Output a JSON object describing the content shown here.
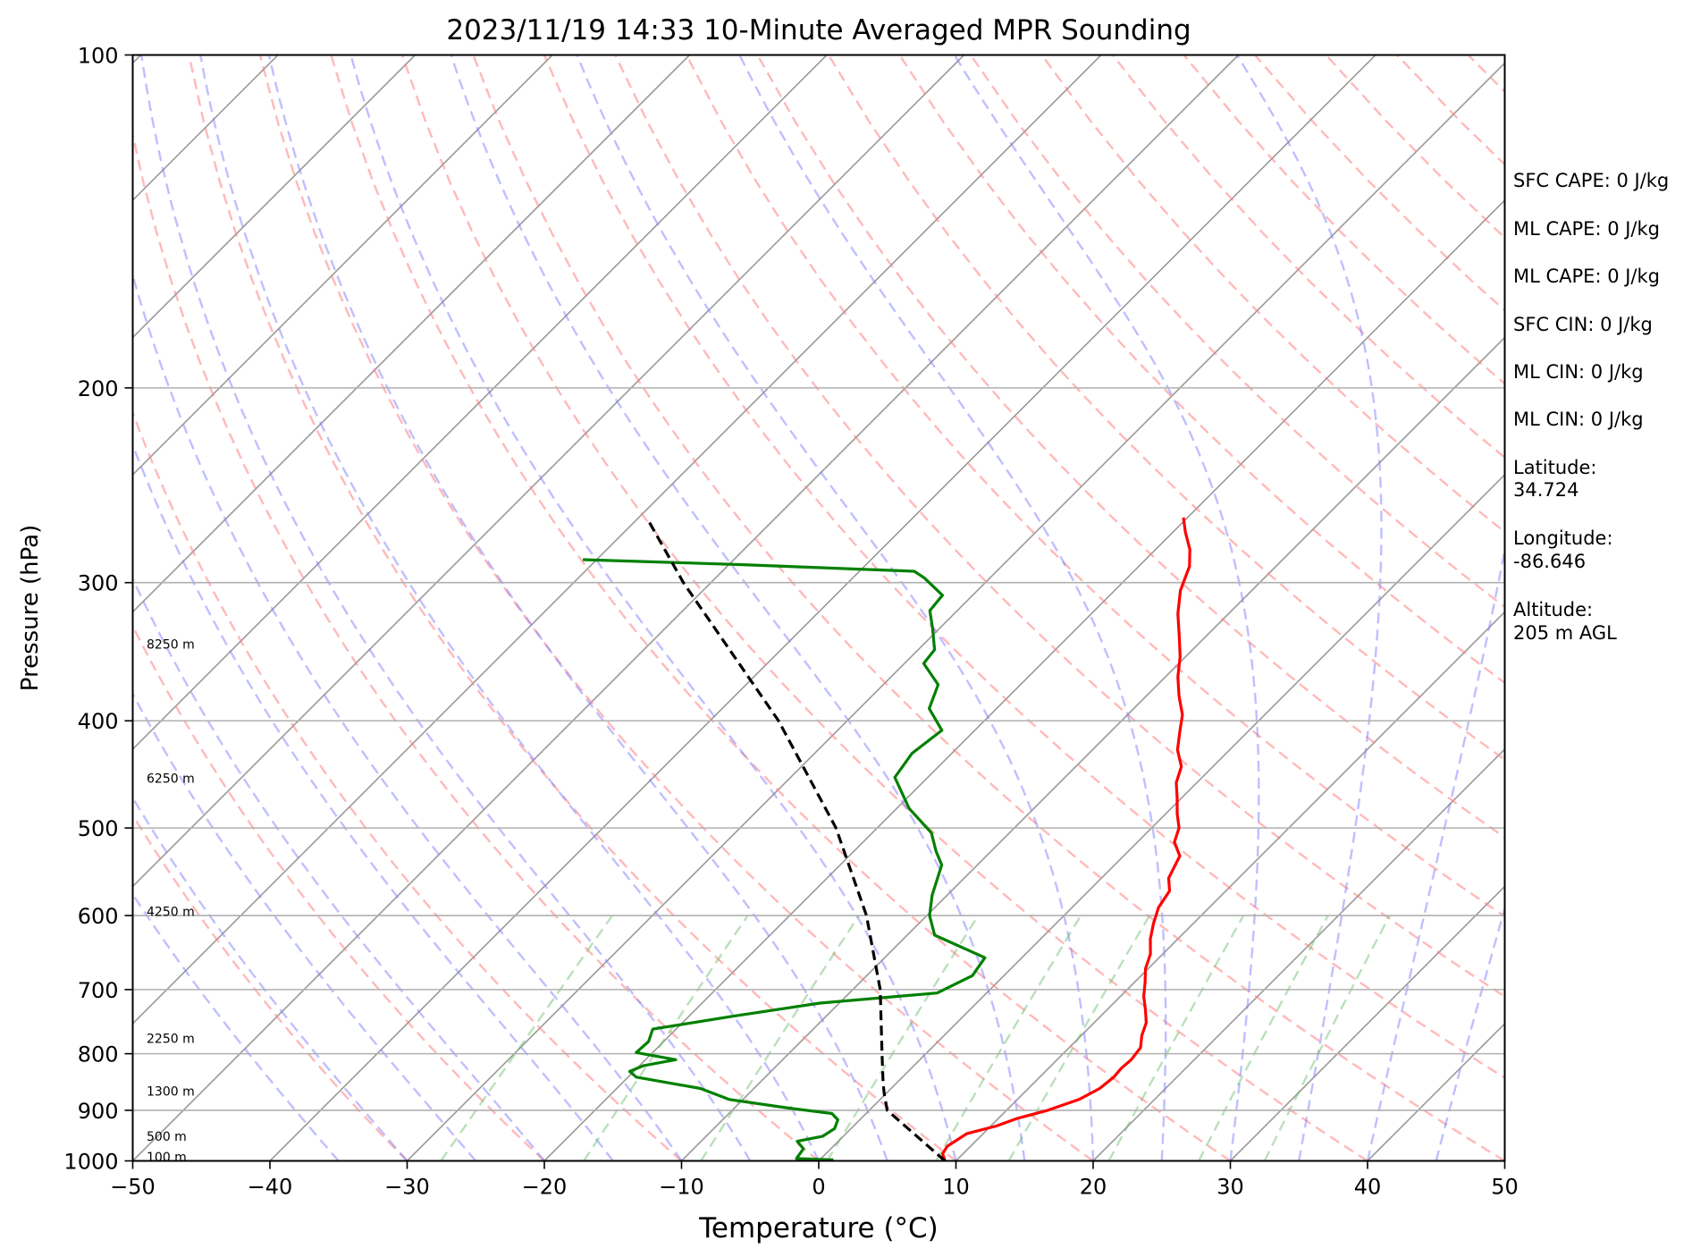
{
  "chart_data": {
    "type": "line",
    "title": "2023/11/19 14:33 10-Minute Averaged MPR Sounding",
    "xlabel": "Temperature (°C)",
    "ylabel": "Pressure (hPa)",
    "xlim": [
      -50,
      50
    ],
    "ylim": [
      1000,
      100
    ],
    "y_scale": "log",
    "skew_t": true,
    "grid": true,
    "x_ticks": [
      "−50",
      "−40",
      "−30",
      "−20",
      "−10",
      "0",
      "10",
      "20",
      "30",
      "40",
      "50"
    ],
    "y_ticks": [
      "100",
      "200",
      "300",
      "400",
      "500",
      "600",
      "700",
      "800",
      "900",
      "1000"
    ],
    "height_labels": [
      {
        "text": "100 m",
        "p": 992
      },
      {
        "text": "500 m",
        "p": 950
      },
      {
        "text": "1300 m",
        "p": 865
      },
      {
        "text": "2250 m",
        "p": 775
      },
      {
        "text": "4250 m",
        "p": 595
      },
      {
        "text": "6250 m",
        "p": 451
      },
      {
        "text": "8250 m",
        "p": 341
      }
    ],
    "series": [
      {
        "key": "temperature",
        "color": "#ff0000",
        "points": [
          {
            "p": 1000,
            "t": 9.2
          },
          {
            "p": 985,
            "t": 8.5
          },
          {
            "p": 970,
            "t": 8.3
          },
          {
            "p": 945,
            "t": 8.8
          },
          {
            "p": 930,
            "t": 10.4
          },
          {
            "p": 915,
            "t": 11.4
          },
          {
            "p": 900,
            "t": 13.0
          },
          {
            "p": 880,
            "t": 14.5
          },
          {
            "p": 860,
            "t": 15.2
          },
          {
            "p": 840,
            "t": 15.4
          },
          {
            "p": 825,
            "t": 15.3
          },
          {
            "p": 810,
            "t": 15.4
          },
          {
            "p": 790,
            "t": 15.2
          },
          {
            "p": 770,
            "t": 14.4
          },
          {
            "p": 750,
            "t": 13.8
          },
          {
            "p": 730,
            "t": 12.8
          },
          {
            "p": 710,
            "t": 11.7
          },
          {
            "p": 690,
            "t": 10.8
          },
          {
            "p": 670,
            "t": 9.8
          },
          {
            "p": 650,
            "t": 9.1
          },
          {
            "p": 630,
            "t": 8.0
          },
          {
            "p": 610,
            "t": 7.1
          },
          {
            "p": 590,
            "t": 6.3
          },
          {
            "p": 570,
            "t": 5.9
          },
          {
            "p": 555,
            "t": 4.9
          },
          {
            "p": 530,
            "t": 4.1
          },
          {
            "p": 515,
            "t": 2.7
          },
          {
            "p": 500,
            "t": 2.0
          },
          {
            "p": 485,
            "t": 0.8
          },
          {
            "p": 470,
            "t": -0.3
          },
          {
            "p": 455,
            "t": -1.5
          },
          {
            "p": 440,
            "t": -2.3
          },
          {
            "p": 425,
            "t": -3.8
          },
          {
            "p": 410,
            "t": -4.9
          },
          {
            "p": 395,
            "t": -6.0
          },
          {
            "p": 380,
            "t": -7.6
          },
          {
            "p": 365,
            "t": -9.1
          },
          {
            "p": 350,
            "t": -10.4
          },
          {
            "p": 335,
            "t": -12.0
          },
          {
            "p": 320,
            "t": -13.7
          },
          {
            "p": 305,
            "t": -15.2
          },
          {
            "p": 290,
            "t": -16.3
          },
          {
            "p": 280,
            "t": -17.5
          },
          {
            "p": 270,
            "t": -19.1
          },
          {
            "p": 262,
            "t": -20.3
          }
        ]
      },
      {
        "key": "dewpoint",
        "color": "#008000",
        "points": [
          {
            "p": 998,
            "t": 1.0
          },
          {
            "p": 995,
            "t": -1.8
          },
          {
            "p": 975,
            "t": -2.0
          },
          {
            "p": 960,
            "t": -3.0
          },
          {
            "p": 950,
            "t": -1.5
          },
          {
            "p": 935,
            "t": -1.2
          },
          {
            "p": 918,
            "t": -1.6
          },
          {
            "p": 906,
            "t": -2.5
          },
          {
            "p": 896,
            "t": -6.0
          },
          {
            "p": 880,
            "t": -11.0
          },
          {
            "p": 860,
            "t": -13.9
          },
          {
            "p": 840,
            "t": -19.4
          },
          {
            "p": 830,
            "t": -20.3
          },
          {
            "p": 820,
            "t": -19.7
          },
          {
            "p": 810,
            "t": -17.8
          },
          {
            "p": 798,
            "t": -21.2
          },
          {
            "p": 780,
            "t": -21.1
          },
          {
            "p": 760,
            "t": -21.7
          },
          {
            "p": 740,
            "t": -16.8
          },
          {
            "p": 720,
            "t": -11.4
          },
          {
            "p": 705,
            "t": -3.6
          },
          {
            "p": 680,
            "t": -2.3
          },
          {
            "p": 655,
            "t": -2.7
          },
          {
            "p": 625,
            "t": -8.0
          },
          {
            "p": 600,
            "t": -9.8
          },
          {
            "p": 575,
            "t": -11.1
          },
          {
            "p": 540,
            "t": -12.6
          },
          {
            "p": 525,
            "t": -14.0
          },
          {
            "p": 505,
            "t": -15.7
          },
          {
            "p": 480,
            "t": -19.1
          },
          {
            "p": 450,
            "t": -22.4
          },
          {
            "p": 428,
            "t": -22.9
          },
          {
            "p": 408,
            "t": -22.4
          },
          {
            "p": 390,
            "t": -24.9
          },
          {
            "p": 371,
            "t": -26.0
          },
          {
            "p": 355,
            "t": -28.6
          },
          {
            "p": 345,
            "t": -28.8
          },
          {
            "p": 330,
            "t": -30.5
          },
          {
            "p": 318,
            "t": -32.0
          },
          {
            "p": 308,
            "t": -32.2
          },
          {
            "p": 297,
            "t": -34.8
          },
          {
            "p": 293,
            "t": -36.0
          },
          {
            "p": 289,
            "t": -49.0
          },
          {
            "p": 286,
            "t": -61.0
          }
        ]
      },
      {
        "key": "parcel",
        "color": "#000000",
        "dashed": true,
        "points": [
          {
            "p": 1000,
            "t": 9.2
          },
          {
            "p": 900,
            "t": 1.3
          },
          {
            "p": 870,
            "t": -0.1
          },
          {
            "p": 850,
            "t": -1.0
          },
          {
            "p": 800,
            "t": -3.2
          },
          {
            "p": 700,
            "t": -8.0
          },
          {
            "p": 600,
            "t": -14.4
          },
          {
            "p": 500,
            "t": -23.0
          },
          {
            "p": 400,
            "t": -35.0
          },
          {
            "p": 300,
            "t": -52.0
          },
          {
            "p": 264,
            "t": -59.0
          }
        ]
      }
    ]
  },
  "info_panel": {
    "sfc_cape": "SFC CAPE: 0 J/kg",
    "ml_cape_1": "ML CAPE: 0 J/kg",
    "ml_cape_2": "ML CAPE: 0 J/kg",
    "sfc_cin": "SFC CIN: 0 J/kg",
    "ml_cin_1": "ML CIN: 0 J/kg",
    "ml_cin_2": "ML CIN: 0 J/kg",
    "latitude_label": "Latitude:",
    "latitude_value": "34.724",
    "longitude_label": "Longitude:",
    "longitude_value": "-86.646",
    "altitude_label": "Altitude:",
    "altitude_value": "205 m AGL"
  }
}
